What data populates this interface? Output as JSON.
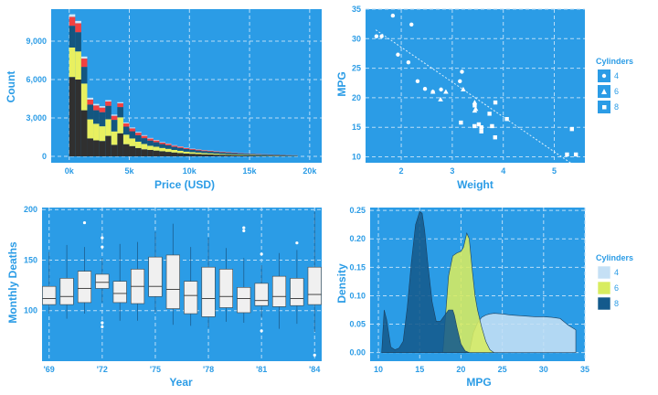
{
  "colors": {
    "panel": "#2b9ce6",
    "text": "#2b9ce6",
    "hist": [
      "#cfe8fb",
      "#f24141",
      "#145680",
      "#e8f060",
      "#303030"
    ],
    "box_fill": "#f0f0f0",
    "density": [
      "#c5e0f5",
      "#d8ec60",
      "#145a8c"
    ],
    "point": "#ffffff"
  },
  "chart_data": [
    {
      "type": "histogram-stacked",
      "xlabel": "Price (USD)",
      "ylabel": "Count",
      "xlim": [
        -1500,
        21000
      ],
      "ylim": [
        -500,
        11500
      ],
      "xticks": [
        0,
        5000,
        10000,
        15000,
        20000
      ],
      "xtick_labels": [
        "0k",
        "5k",
        "10k",
        "15k",
        "20k"
      ],
      "yticks": [
        0,
        3000,
        6000,
        9000
      ],
      "ytick_labels": [
        "0",
        "3,000",
        "6,000",
        "9,000"
      ],
      "bin_starts": [
        0,
        500,
        1000,
        1500,
        2000,
        2500,
        3000,
        3500,
        4000,
        4500,
        5000,
        5500,
        6000,
        6500,
        7000,
        7500,
        8000,
        8500,
        9000,
        9500,
        10000,
        10500,
        11000,
        11500,
        12000,
        12500,
        13000,
        13500,
        14000,
        14500,
        15000,
        15500,
        16000,
        16500,
        17000,
        17500,
        18000,
        18500
      ],
      "bin_width": 500,
      "grid": true,
      "series": [
        {
          "values": [
            200,
            180,
            160,
            140,
            120,
            110,
            100,
            90,
            80,
            70,
            65,
            60,
            55,
            50,
            45,
            40,
            38,
            35,
            32,
            30,
            28,
            26,
            24,
            22,
            20,
            18,
            16,
            15,
            14,
            12,
            11,
            10,
            9,
            8,
            7,
            6,
            5,
            4
          ]
        },
        {
          "values": [
            700,
            700,
            650,
            400,
            380,
            360,
            340,
            320,
            300,
            260,
            230,
            200,
            180,
            160,
            140,
            120,
            110,
            100,
            90,
            80,
            70,
            65,
            60,
            55,
            50,
            45,
            40,
            35,
            30,
            28,
            26,
            24,
            22,
            20,
            18,
            16,
            14,
            12
          ]
        },
        {
          "values": [
            1700,
            1500,
            1300,
            1150,
            1050,
            1100,
            1050,
            900,
            800,
            620,
            560,
            500,
            450,
            400,
            350,
            300,
            270,
            240,
            220,
            200,
            180,
            160,
            150,
            140,
            130,
            120,
            110,
            100,
            90,
            80,
            70,
            60,
            55,
            50,
            45,
            40,
            35,
            30
          ]
        },
        {
          "values": [
            2300,
            2200,
            2090,
            1490,
            1300,
            1150,
            1300,
            1050,
            1250,
            750,
            600,
            500,
            420,
            330,
            300,
            260,
            240,
            200,
            180,
            150,
            130,
            120,
            100,
            90,
            80,
            70,
            60,
            55,
            50,
            45,
            40,
            35,
            30,
            28,
            25,
            20,
            18,
            15
          ]
        },
        {
          "values": [
            6200,
            6000,
            3600,
            1400,
            1250,
            1200,
            1600,
            900,
            1800,
            950,
            800,
            650,
            550,
            500,
            450,
            400,
            350,
            300,
            260,
            220,
            200,
            180,
            160,
            150,
            130,
            120,
            110,
            100,
            90,
            80,
            70,
            60,
            55,
            50,
            45,
            40,
            30,
            25
          ]
        }
      ]
    },
    {
      "type": "scatter",
      "xlabel": "Weight",
      "ylabel": "MPG",
      "xlim": [
        1.3,
        5.6
      ],
      "ylim": [
        9,
        35
      ],
      "xticks": [
        2,
        3,
        4,
        5
      ],
      "yticks": [
        10,
        15,
        20,
        25,
        30,
        35
      ],
      "grid": true,
      "legend": {
        "title": "Cylinders",
        "position": "right",
        "entries": [
          "4",
          "6",
          "8"
        ]
      },
      "series": [
        {
          "name": "4",
          "marker": "circle",
          "points": [
            [
              2.62,
              21.0
            ],
            [
              2.32,
              22.8
            ],
            [
              3.19,
              24.4
            ],
            [
              3.15,
              22.8
            ],
            [
              2.2,
              32.4
            ],
            [
              1.615,
              30.4
            ],
            [
              1.835,
              33.9
            ],
            [
              2.465,
              21.5
            ],
            [
              1.935,
              27.3
            ],
            [
              2.14,
              26.0
            ],
            [
              1.513,
              30.4
            ],
            [
              2.78,
              21.4
            ]
          ]
        },
        {
          "name": "6",
          "marker": "triangle",
          "points": [
            [
              2.875,
              21.0
            ],
            [
              3.215,
              21.4
            ],
            [
              3.46,
              18.1
            ],
            [
              3.44,
              19.2
            ],
            [
              3.44,
              17.8
            ],
            [
              2.62,
              21.0
            ],
            [
              2.77,
              19.7
            ]
          ]
        },
        {
          "name": "8",
          "marker": "square",
          "points": [
            [
              3.44,
              18.7
            ],
            [
              3.57,
              14.3
            ],
            [
              4.07,
              16.4
            ],
            [
              3.73,
              17.3
            ],
            [
              3.78,
              15.2
            ],
            [
              5.25,
              10.4
            ],
            [
              5.424,
              10.4
            ],
            [
              5.345,
              14.7
            ],
            [
              3.52,
              15.5
            ],
            [
              3.435,
              15.2
            ],
            [
              3.84,
              13.3
            ],
            [
              3.845,
              19.2
            ],
            [
              3.17,
              15.8
            ],
            [
              3.57,
              15.0
            ]
          ]
        }
      ],
      "trend": {
        "x": [
          1.5,
          5.4
        ],
        "y": [
          31.5,
          8.5
        ]
      }
    },
    {
      "type": "box",
      "xlabel": "Year",
      "ylabel": "Monthly Deaths",
      "xlim": [
        1968.6,
        1984.4
      ],
      "ylim": [
        50,
        202
      ],
      "xticks": [
        1969,
        1972,
        1975,
        1978,
        1981,
        1984
      ],
      "xtick_labels": [
        "'69",
        "'72",
        "'75",
        "'78",
        "'81",
        "'84"
      ],
      "yticks": [
        100,
        150,
        200
      ],
      "grid": true,
      "boxes": [
        {
          "year": 1969,
          "whisker_low": 97,
          "q1": 106,
          "median": 112,
          "q3": 124,
          "whisker_high": 158
        },
        {
          "year": 1970,
          "whisker_low": 92,
          "q1": 106,
          "median": 114,
          "q3": 132,
          "whisker_high": 165
        },
        {
          "year": 1971,
          "whisker_low": 97,
          "q1": 108,
          "median": 122,
          "q3": 139,
          "whisker_high": 163,
          "outliers": [
            187
          ]
        },
        {
          "year": 1972,
          "whisker_low": 108,
          "q1": 122,
          "median": 128,
          "q3": 136,
          "whisker_high": 152,
          "outliers": [
            172,
            163,
            88,
            84
          ]
        },
        {
          "year": 1973,
          "whisker_low": 90,
          "q1": 108,
          "median": 117,
          "q3": 129,
          "whisker_high": 166
        },
        {
          "year": 1974,
          "whisker_low": 90,
          "q1": 107,
          "median": 124,
          "q3": 141,
          "whisker_high": 168
        },
        {
          "year": 1975,
          "whisker_low": 98,
          "q1": 114,
          "median": 124,
          "q3": 153,
          "whisker_high": 178
        },
        {
          "year": 1976,
          "whisker_low": 86,
          "q1": 102,
          "median": 121,
          "q3": 155,
          "whisker_high": 186
        },
        {
          "year": 1977,
          "whisker_low": 85,
          "q1": 97,
          "median": 115,
          "q3": 129,
          "whisker_high": 163
        },
        {
          "year": 1978,
          "whisker_low": 83,
          "q1": 94,
          "median": 112,
          "q3": 143,
          "whisker_high": 172
        },
        {
          "year": 1979,
          "whisker_low": 89,
          "q1": 103,
          "median": 114,
          "q3": 141,
          "whisker_high": 162
        },
        {
          "year": 1980,
          "whisker_low": 88,
          "q1": 98,
          "median": 112,
          "q3": 123,
          "whisker_high": 152,
          "outliers": [
            182,
            179
          ]
        },
        {
          "year": 1981,
          "whisker_low": 93,
          "q1": 105,
          "median": 110,
          "q3": 127,
          "whisker_high": 145,
          "outliers": [
            156,
            80
          ]
        },
        {
          "year": 1982,
          "whisker_low": 82,
          "q1": 104,
          "median": 114,
          "q3": 134,
          "whisker_high": 157
        },
        {
          "year": 1983,
          "whisker_low": 87,
          "q1": 105,
          "median": 112,
          "q3": 132,
          "whisker_high": 160,
          "outliers": [
            167
          ]
        },
        {
          "year": 1984,
          "whisker_low": 79,
          "q1": 106,
          "median": 116,
          "q3": 143,
          "whisker_high": 198,
          "outliers": [
            56
          ]
        }
      ]
    },
    {
      "type": "area",
      "xlabel": "MPG",
      "ylabel": "Density",
      "xlim": [
        9,
        35
      ],
      "ylim": [
        -0.015,
        0.255
      ],
      "xticks": [
        10,
        15,
        20,
        25,
        30,
        35
      ],
      "yticks": [
        0.0,
        0.05,
        0.1,
        0.15,
        0.2,
        0.25
      ],
      "ytick_labels": [
        "0.00",
        "0.05",
        "0.10",
        "0.15",
        "0.20",
        "0.25"
      ],
      "grid": true,
      "legend": {
        "title": "Cylinders",
        "position": "right",
        "entries": [
          "4",
          "6",
          "8"
        ]
      },
      "series": [
        {
          "name": "4",
          "x": [
            21,
            21.5,
            22,
            22.5,
            23,
            23.5,
            24,
            25,
            26,
            27,
            28,
            29,
            30,
            31,
            32,
            33,
            33.9
          ],
          "y": [
            0.0,
            0.035,
            0.052,
            0.062,
            0.066,
            0.068,
            0.069,
            0.068,
            0.066,
            0.065,
            0.064,
            0.063,
            0.063,
            0.062,
            0.06,
            0.048,
            0.04
          ]
        },
        {
          "name": "6",
          "x": [
            17.8,
            18.1,
            18.5,
            19,
            19.5,
            20,
            20.3,
            20.7,
            21,
            21.4,
            21.7,
            22,
            22.5,
            23,
            23.5,
            24
          ],
          "y": [
            0.0,
            0.06,
            0.135,
            0.17,
            0.175,
            0.178,
            0.185,
            0.21,
            0.2,
            0.14,
            0.1,
            0.075,
            0.045,
            0.02,
            0.005,
            0.0
          ]
        },
        {
          "name": "8",
          "x": [
            10.4,
            10.7,
            11,
            11.5,
            12,
            12.5,
            13,
            13.5,
            14,
            14.5,
            15,
            15.3,
            15.6,
            16,
            16.5,
            17,
            17.5,
            18,
            18.5,
            19,
            19.2,
            19.5,
            20,
            20.5,
            21
          ],
          "y": [
            0.0,
            0.075,
            0.058,
            0.01,
            0.005,
            0.008,
            0.02,
            0.08,
            0.16,
            0.225,
            0.248,
            0.245,
            0.215,
            0.155,
            0.09,
            0.055,
            0.055,
            0.065,
            0.075,
            0.075,
            0.066,
            0.045,
            0.015,
            0.003,
            0.0
          ]
        }
      ]
    }
  ]
}
